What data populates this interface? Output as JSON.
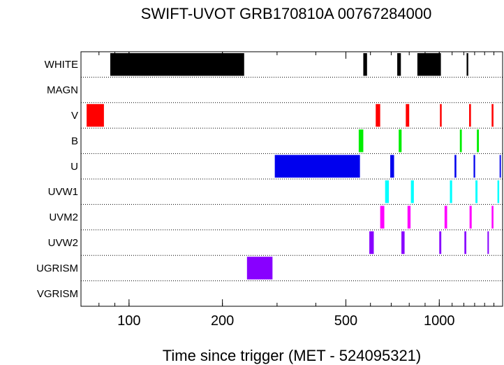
{
  "chart_data": {
    "type": "timeline",
    "title": "SWIFT-UVOT GRB170810A 00767284000",
    "xlabel": "Time since trigger (MET - 524095321)",
    "x_scale": "log",
    "xlim": [
      70,
      1600
    ],
    "x_ticks": [
      100,
      200,
      500,
      1000
    ],
    "x_tick_labels": [
      "100",
      "200",
      "500",
      "1000"
    ],
    "rows": [
      "WHITE",
      "MAGN",
      "V",
      "B",
      "U",
      "UVW1",
      "UVM2",
      "UVW2",
      "UGRISM",
      "VGRISM"
    ],
    "series": [
      {
        "name": "WHITE",
        "color": "#000000",
        "segments": [
          [
            87,
            235
          ],
          [
            569,
            585
          ],
          [
            732,
            752
          ],
          [
            850,
            1012
          ],
          [
            1225,
            1240
          ]
        ]
      },
      {
        "name": "MAGN",
        "color": "#000000",
        "segments": []
      },
      {
        "name": "V",
        "color": "#ff0000",
        "segments": [
          [
            73,
            83
          ],
          [
            624,
            645
          ],
          [
            780,
            800
          ],
          [
            1005,
            1018
          ],
          [
            1248,
            1265
          ],
          [
            1475,
            1495
          ]
        ]
      },
      {
        "name": "B",
        "color": "#00ee00",
        "segments": [
          [
            550,
            569
          ],
          [
            740,
            756
          ],
          [
            1165,
            1182
          ],
          [
            1322,
            1342
          ]
        ]
      },
      {
        "name": "U",
        "color": "#0000ee",
        "segments": [
          [
            295,
            555
          ],
          [
            695,
            715
          ],
          [
            1120,
            1135
          ],
          [
            1290,
            1305
          ],
          [
            1565,
            1580
          ]
        ]
      },
      {
        "name": "UVW1",
        "color": "#00ffff",
        "segments": [
          [
            669,
            688
          ],
          [
            810,
            828
          ],
          [
            1082,
            1100
          ],
          [
            1308,
            1328
          ],
          [
            1540,
            1560
          ]
        ]
      },
      {
        "name": "UVM2",
        "color": "#ff00ff",
        "segments": [
          [
            645,
            665
          ],
          [
            790,
            808
          ],
          [
            1040,
            1060
          ],
          [
            1252,
            1272
          ],
          [
            1475,
            1495
          ]
        ]
      },
      {
        "name": "UVW2",
        "color": "#8800ff",
        "segments": [
          [
            595,
            615
          ],
          [
            755,
            773
          ],
          [
            1000,
            1015
          ],
          [
            1205,
            1222
          ],
          [
            1430,
            1445
          ]
        ]
      },
      {
        "name": "UGRISM",
        "color": "#8800ff",
        "segments": [
          [
            240,
            290
          ]
        ]
      },
      {
        "name": "VGRISM",
        "color": "#000000",
        "segments": []
      }
    ]
  }
}
